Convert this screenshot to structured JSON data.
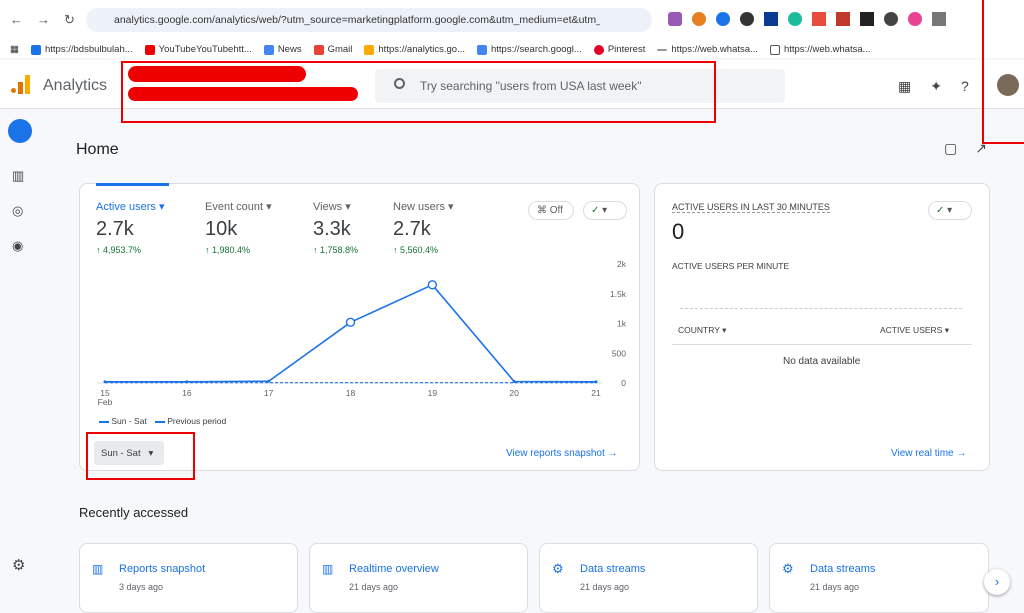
{
  "browser": {
    "url": "analytics.google.com/analytics/web/?utm_source=marketingplatform.google.com&utm_medium=et&utm_...",
    "bookmarks": [
      "https://bdsbulbulah...",
      "YouTubeYouTubehtt...",
      "News",
      "Gmail",
      "https://analytics.go...",
      "https://search.googl...",
      "Pinterest",
      "https://web.whatsa...",
      "https://web.whatsa..."
    ]
  },
  "header": {
    "app_name": "Analytics",
    "search_placeholder": "Try searching \"users from USA last week\""
  },
  "page_title": "Home",
  "metrics": [
    {
      "label": "Active users",
      "value": "2.7k",
      "change": "4,953.7%"
    },
    {
      "label": "Event count",
      "value": "10k",
      "change": "1,980.4%"
    },
    {
      "label": "Views",
      "value": "3.3k",
      "change": "1,758.8%"
    },
    {
      "label": "New users",
      "value": "2.7k",
      "change": "5,560.4%"
    }
  ],
  "comparison_toggle": "Off",
  "chart_data": {
    "type": "line",
    "categories": [
      "15",
      "16",
      "17",
      "18",
      "19",
      "20",
      "21"
    ],
    "x_period_label": "Feb",
    "series": [
      {
        "name": "Sun - Sat",
        "color": "#1a73e8",
        "line_style": "solid",
        "values": [
          20,
          20,
          30,
          1020,
          1650,
          25,
          20
        ]
      },
      {
        "name": "Previous period",
        "color": "#1a73e8",
        "line_style": "dashed",
        "values": [
          5,
          5,
          5,
          5,
          5,
          5,
          5
        ]
      }
    ],
    "ylim": [
      0,
      2000
    ],
    "yticks": [
      {
        "value": 0,
        "label": "0"
      },
      500,
      {
        "value": 1000,
        "label": "1k"
      },
      {
        "value": 1500,
        "label": "1.5k"
      },
      {
        "value": 2000,
        "label": "2k"
      }
    ],
    "grid": false
  },
  "date_range": "Sun - Sat",
  "snapshot_link": "View reports snapshot",
  "realtime": {
    "title": "ACTIVE USERS IN LAST 30 MINUTES",
    "value": "0",
    "per_minute": "ACTIVE USERS PER MINUTE",
    "columns": [
      "COUNTRY",
      "ACTIVE USERS"
    ],
    "empty": "No data available",
    "link": "View real time"
  },
  "recent": {
    "title": "Recently accessed",
    "items": [
      {
        "name": "Reports snapshot",
        "time": "3 days ago"
      },
      {
        "name": "Realtime overview",
        "time": "21 days ago"
      },
      {
        "name": "Data streams",
        "time": "21 days ago"
      },
      {
        "name": "Data streams",
        "time": "21 days ago"
      }
    ]
  }
}
